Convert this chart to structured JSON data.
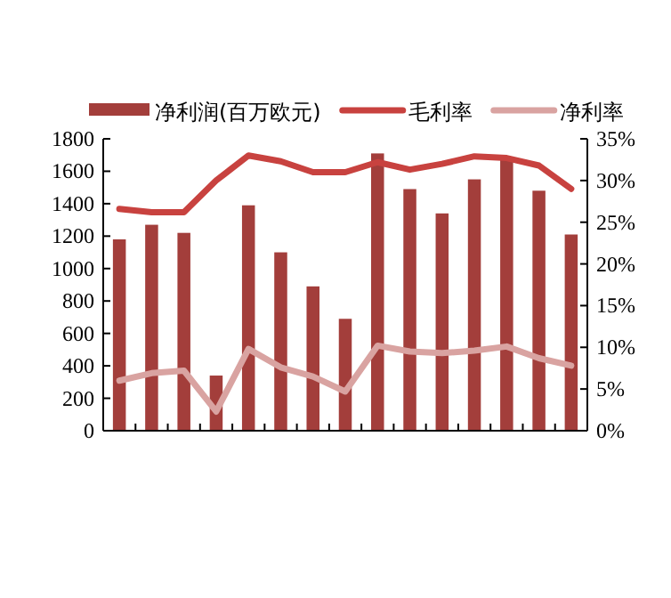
{
  "chart_data": {
    "type": "bar",
    "categories": [
      null,
      null,
      null,
      null,
      null,
      null,
      null,
      null,
      null,
      null,
      null,
      null,
      null,
      null,
      null
    ],
    "series": [
      {
        "name": "净利润(百万欧元)",
        "color": "#a33e3b",
        "values": [
          1180,
          1270,
          1220,
          340,
          1390,
          1100,
          890,
          690,
          1710,
          1490,
          1340,
          1550,
          1670,
          1480,
          1210
        ]
      },
      {
        "name": "毛利率",
        "type": "line",
        "axis": "y2",
        "color": "#c8423f",
        "values": [
          26.6,
          26.2,
          26.2,
          30.0,
          33.0,
          32.3,
          31.0,
          31.0,
          32.2,
          31.3,
          32.0,
          32.9,
          32.7,
          31.8,
          29.0
        ]
      },
      {
        "name": "净利率",
        "type": "line",
        "axis": "y2",
        "color": "#d9a3a1",
        "values": [
          6.0,
          6.9,
          7.2,
          2.3,
          9.8,
          7.6,
          6.5,
          4.7,
          10.2,
          9.5,
          9.3,
          9.6,
          10.1,
          8.7,
          7.8
        ]
      }
    ],
    "ylim": [
      0,
      1800
    ],
    "yticks": [
      0,
      200,
      400,
      600,
      800,
      1000,
      1200,
      1400,
      1600,
      1800
    ],
    "y2lim": [
      0,
      35
    ],
    "y2ticks": [
      {
        "value": 0,
        "label": "0%"
      },
      {
        "value": 5,
        "label": "5%"
      },
      {
        "value": 10,
        "label": "10%"
      },
      {
        "value": 15,
        "label": "15%"
      },
      {
        "value": 20,
        "label": "20%"
      },
      {
        "value": 25,
        "label": "25%"
      },
      {
        "value": 30,
        "label": "30%"
      },
      {
        "value": 35,
        "label": "35%"
      }
    ],
    "legend": "top",
    "grid": false
  }
}
